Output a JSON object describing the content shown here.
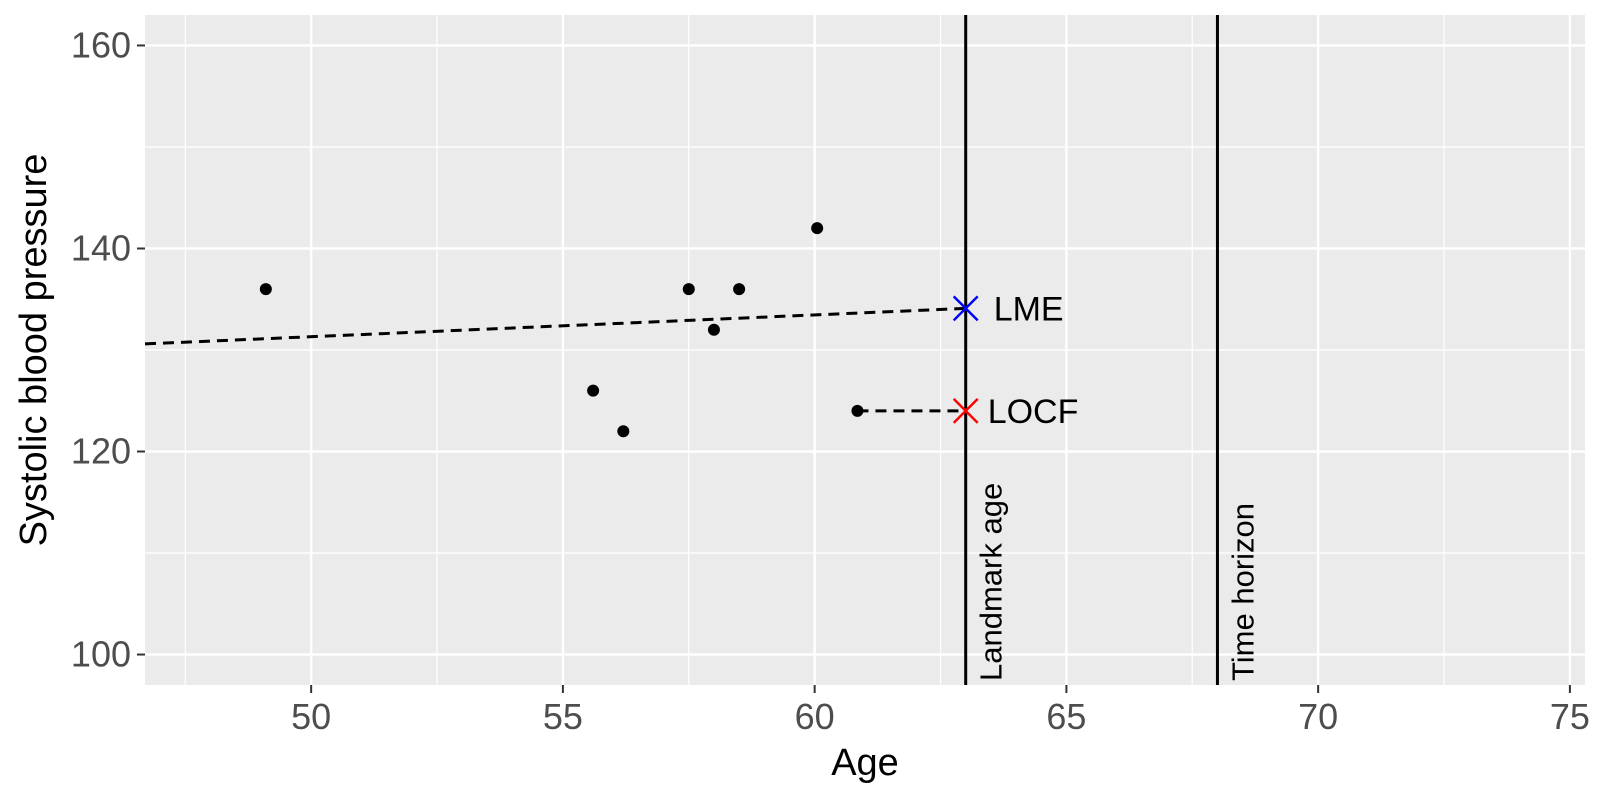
{
  "chart_data": {
    "type": "scatter",
    "xlabel": "Age",
    "ylabel": "Systolic blood pressure",
    "xlim": [
      46.7,
      75.3
    ],
    "ylim": [
      97,
      163
    ],
    "x_ticks": [
      50,
      55,
      60,
      65,
      70,
      75
    ],
    "y_ticks": [
      100,
      120,
      140,
      160
    ],
    "grid": true,
    "points": [
      {
        "x": 49.1,
        "y": 136
      },
      {
        "x": 55.6,
        "y": 126
      },
      {
        "x": 56.2,
        "y": 122
      },
      {
        "x": 57.5,
        "y": 136
      },
      {
        "x": 58.0,
        "y": 132
      },
      {
        "x": 58.5,
        "y": 136
      },
      {
        "x": 60.05,
        "y": 142
      },
      {
        "x": 60.85,
        "y": 124
      }
    ],
    "lme_line": {
      "x": [
        46.7,
        63.0
      ],
      "y": [
        130.6,
        134.1
      ]
    },
    "locf_line": {
      "x": [
        60.85,
        63.0
      ],
      "y": [
        124,
        124
      ]
    },
    "markers": [
      {
        "label": "LME",
        "x": 63.0,
        "y": 134.1,
        "color": "#0000ff"
      },
      {
        "label": "LOCF",
        "x": 63.0,
        "y": 124,
        "color": "#ff0000"
      }
    ],
    "vlines": [
      {
        "label": "Landmark age",
        "x": 63.0
      },
      {
        "label": "Time horizon",
        "x": 68.0
      }
    ],
    "colors": {
      "panel": "#ebebeb",
      "grid": "#ffffff",
      "points": "#000000",
      "tick_text": "#4d4d4d"
    }
  }
}
